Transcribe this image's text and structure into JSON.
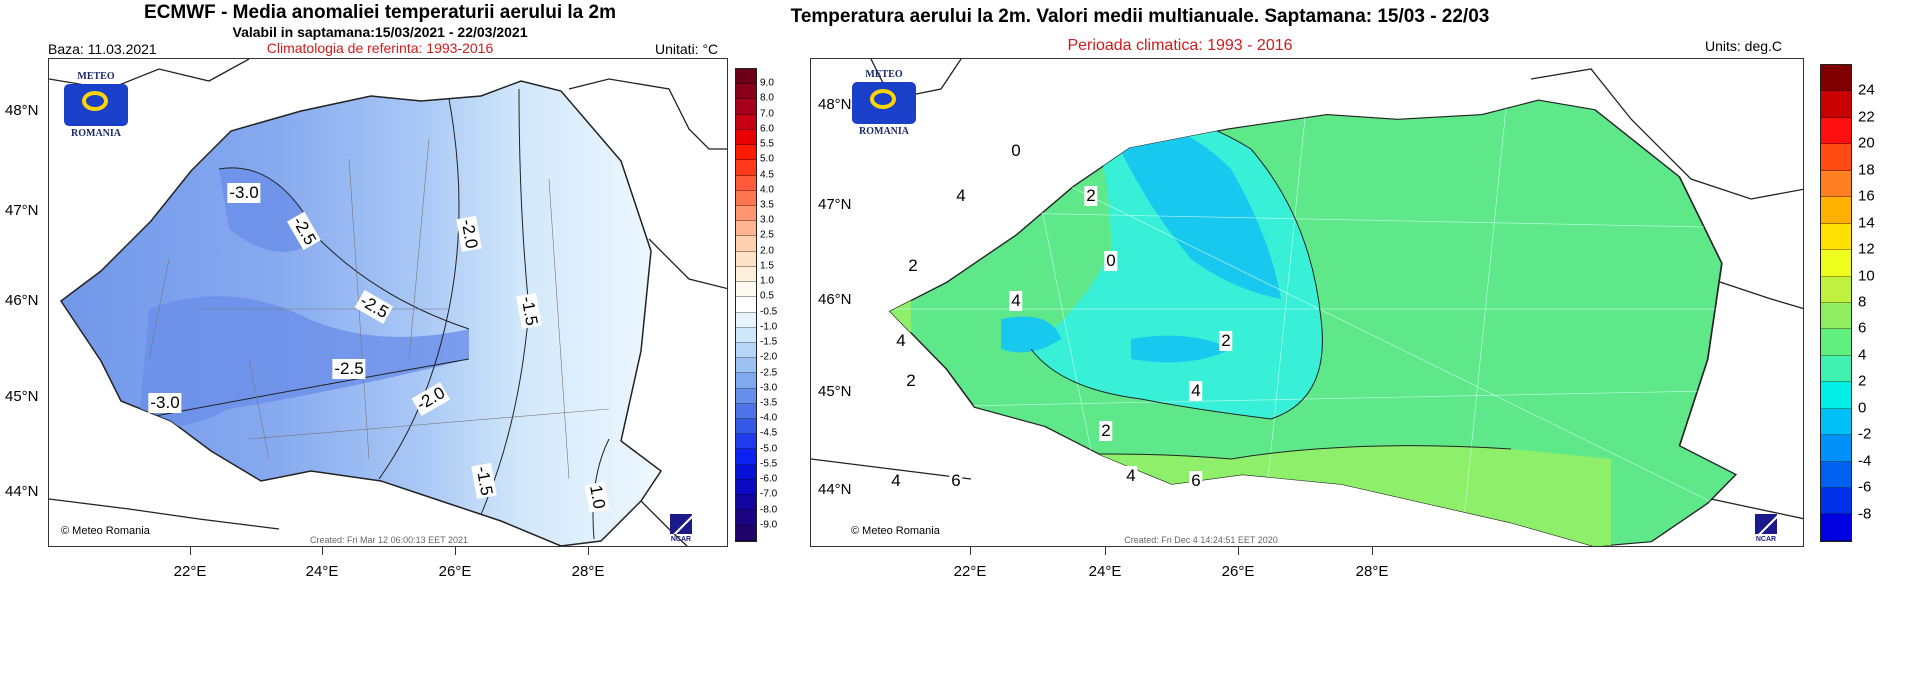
{
  "left": {
    "title": "ECMWF  - Media anomaliei temperaturii aerului la 2m",
    "subtitle": "Valabil in saptamana:15/03/2021 - 22/03/2021",
    "climatology": "Climatologia de referinta: 1993-2016",
    "base_date": "Baza: 11.03.2021",
    "units": "Unitati: °C",
    "copyright": "© Meteo Romania",
    "created": "Created: Fri Mar 12 06:00:13 EET 2021",
    "lat_labels": [
      "48°N",
      "47°N",
      "46°N",
      "45°N",
      "44°N"
    ],
    "lon_labels": [
      "22°E",
      "24°E",
      "26°E",
      "28°E"
    ],
    "contour_labels": [
      "-3.0",
      "-2.5",
      "-2.0",
      "-2.5",
      "-1.5",
      "-3.0",
      "-2.5",
      "-2.0",
      "-1.5",
      "1.0"
    ],
    "colorbar": {
      "labels": [
        "9.0",
        "8.0",
        "7.0",
        "6.0",
        "5.5",
        "5.0",
        "4.5",
        "4.0",
        "3.5",
        "3.0",
        "2.5",
        "2.0",
        "1.5",
        "1.0",
        "0.5",
        "-0.5",
        "-1.0",
        "-1.5",
        "-2.0",
        "-2.5",
        "-3.0",
        "-3.5",
        "-4.0",
        "-4.5",
        "-5.0",
        "-5.5",
        "-6.0",
        "-7.0",
        "-8.0",
        "-9.0"
      ],
      "colors": [
        "#6b0016",
        "#8a0018",
        "#a8001c",
        "#c80014",
        "#e80000",
        "#ff1a00",
        "#ff3a1a",
        "#ff5a3a",
        "#ff7650",
        "#ff9670",
        "#ffb690",
        "#ffd0b0",
        "#ffe2c8",
        "#fff0dc",
        "#fffaf0",
        "#ffffff",
        "#e6f5fd",
        "#cfe7fb",
        "#b6d6f8",
        "#9cc2f4",
        "#80aaef",
        "#6690ea",
        "#4c74e6",
        "#3458e8",
        "#1e3cec",
        "#0c22f0",
        "#0810d8",
        "#0a08c0",
        "#12049e",
        "#1a0482",
        "#20026a"
      ]
    }
  },
  "right": {
    "title": "Temperatura aerului la 2m. Valori medii multianuale. Saptamana: 15/03 - 22/03",
    "period": "Perioada climatica: 1993 - 2016",
    "units": "Units: deg.C",
    "copyright": "© Meteo Romania",
    "created": "Created: Fri Dec  4 14:24:51 EET 2020",
    "lat_labels": [
      "48°N",
      "47°N",
      "46°N",
      "45°N",
      "44°N"
    ],
    "lon_labels": [
      "22°E",
      "24°E",
      "26°E",
      "28°E"
    ],
    "contour_labels": [
      "0",
      "2",
      "4",
      "2",
      "0",
      "4",
      "4",
      "2",
      "2",
      "4",
      "2",
      "4",
      "4",
      "6",
      "6"
    ],
    "colorbar": {
      "labels": [
        "24",
        "22",
        "20",
        "18",
        "16",
        "14",
        "12",
        "10",
        "8",
        "6",
        "4",
        "2",
        "0",
        "-2",
        "-4",
        "-6",
        "-8"
      ],
      "colors": [
        "#800000",
        "#c80000",
        "#ff1010",
        "#ff4a10",
        "#ff8020",
        "#ffb000",
        "#ffe000",
        "#eeff20",
        "#c0f040",
        "#90ee60",
        "#60f080",
        "#40f0b0",
        "#00f0e8",
        "#00c0f8",
        "#0090f8",
        "#0060f0",
        "#0030e8",
        "#0000e0"
      ]
    }
  },
  "logo": {
    "top": "METEO",
    "bottom": "ROMANIA",
    "ncar": "NCAR"
  }
}
